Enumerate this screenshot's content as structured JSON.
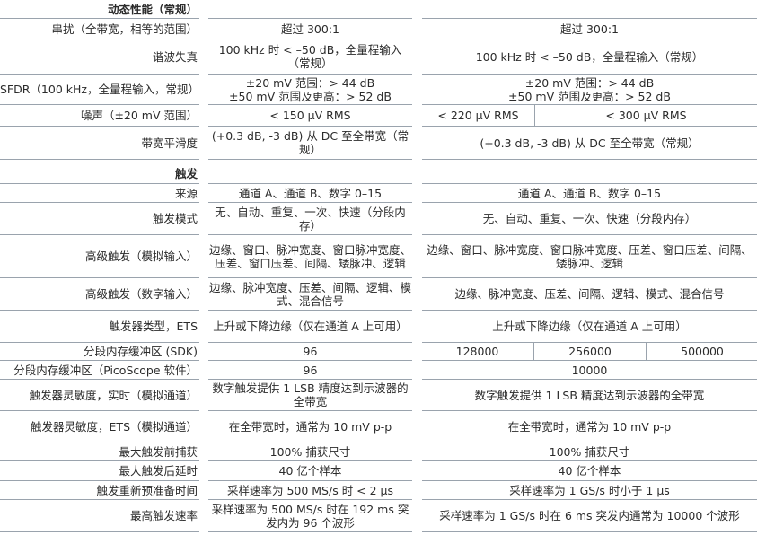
{
  "sections": [
    {
      "title": "动态性能（常规）",
      "rows": [
        {
          "label": "串扰（全带宽，相等的范围）",
          "col1": "超过 300:1",
          "col2": [
            "超过 300:1"
          ]
        },
        {
          "label": "谐波失真",
          "col1": "100 kHz 时 < –50 dB，全量程输入（常规）",
          "col2": [
            "100 kHz 时 < –50 dB，全量程输入（常规）"
          ]
        },
        {
          "label": "SFDR（100 kHz，全量程输入，常规）",
          "col1": "±20 mV 范围：> 44 dB\n±50 mV 范围及更高：> 52 dB",
          "col2": [
            "±20 mV 范围：> 44 dB\n±50 mV 范围及更高：> 52 dB"
          ]
        },
        {
          "label": "噪声（±20 mV 范围）",
          "col1": "< 150 μV RMS",
          "col2": [
            "< 220 μV RMS",
            "< 300 μV RMS"
          ]
        },
        {
          "label": "带宽平滑度",
          "col1": "(+0.3 dB, -3 dB) 从 DC 至全带宽（常规）",
          "col2": [
            "(+0.3 dB, -3 dB) 从 DC 至全带宽（常规）"
          ]
        }
      ]
    },
    {
      "title": "触发",
      "rows": [
        {
          "label": "来源",
          "col1": "通道 A、通道 B、数字 0–15",
          "col2": [
            "通道 A、通道 B、数字 0–15"
          ]
        },
        {
          "label": "触发模式",
          "col1": "无、自动、重复、一次、快速（分段内存）",
          "col2": [
            "无、自动、重复、一次、快速（分段内存）"
          ]
        },
        {
          "label": "高级触发（模拟输入）",
          "col1": "边缘、窗口、脉冲宽度、窗口脉冲宽度、压差、窗口压差、间隔、矮脉冲、逻辑",
          "col2": [
            "边缘、窗口、脉冲宽度、窗口脉冲宽度、压差、窗口压差、间隔、矮脉冲、逻辑"
          ]
        },
        {
          "label": "高级触发（数字输入）",
          "col1": "边缘、脉冲宽度、压差、间隔、逻辑、模式、混合信号",
          "col2": [
            "边缘、脉冲宽度、压差、间隔、逻辑、模式、混合信号"
          ]
        },
        {
          "label": "触发器类型，ETS",
          "col1": "上升或下降边缘（仅在通道 A 上可用）",
          "col2": [
            "上升或下降边缘（仅在通道 A 上可用）"
          ]
        },
        {
          "label": "分段内存缓冲区 (SDK)",
          "col1": "96",
          "col2": [
            "128000",
            "256000",
            "500000"
          ]
        },
        {
          "label": "分段内存缓冲区（PicoScope 软件）",
          "col1": "96",
          "col2": [
            "10000"
          ]
        },
        {
          "label": "触发器灵敏度，实时（模拟通道）",
          "col1": "数字触发提供 1 LSB 精度达到示波器的全带宽",
          "col2": [
            "数字触发提供 1 LSB 精度达到示波器的全带宽"
          ]
        },
        {
          "label": "触发器灵敏度，ETS（模拟通道）",
          "col1": "在全带宽时，通常为 10 mV p-p",
          "col2": [
            "在全带宽时，通常为 10 mV p-p"
          ]
        },
        {
          "label": "最大触发前捕获",
          "col1": "100% 捕获尺寸",
          "col2": [
            "100% 捕获尺寸"
          ]
        },
        {
          "label": "最大触发后延时",
          "col1": "40 亿个样本",
          "col2": [
            "40 亿个样本"
          ]
        },
        {
          "label": "触发重新预准备时间",
          "col1": "采样速率为 500 MS/s 时 < 2 μs",
          "col2": [
            "采样速率为 1 GS/s 时小于 1 μs"
          ]
        },
        {
          "label": "最高触发速率",
          "col1": "采样速率为 500 MS/s 时在 192 ms 突发内为 96 个波形",
          "col2": [
            "采样速率为 1 GS/s 时在 6 ms 突发内通常为 10000 个波形"
          ]
        }
      ]
    }
  ]
}
